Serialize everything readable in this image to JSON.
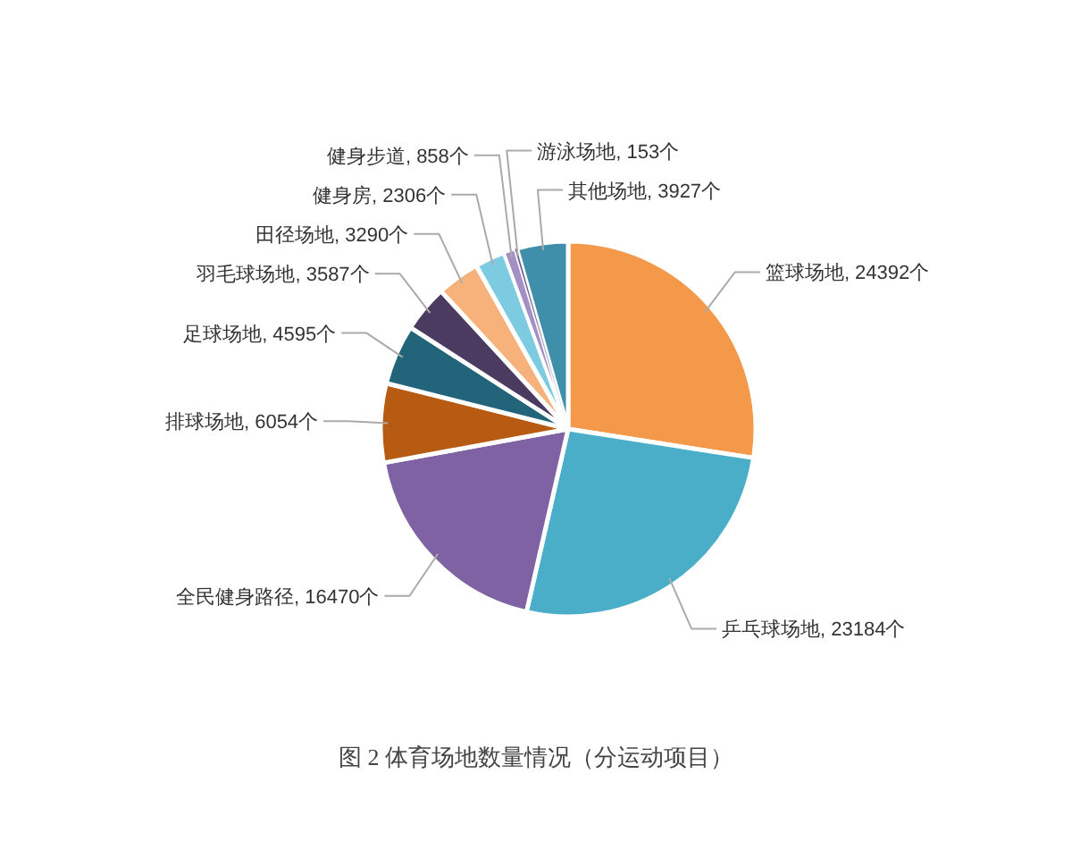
{
  "chart_data": {
    "type": "pie",
    "title": "图 2 体育场地数量情况（分运动项目）",
    "categories": [
      "篮球场地",
      "乒乓球场地",
      "全民健身路径",
      "排球场地",
      "足球场地",
      "羽毛球场地",
      "田径场地",
      "健身房",
      "健身步道",
      "游泳场地",
      "其他场地"
    ],
    "values": [
      24392,
      23184,
      16470,
      6054,
      4595,
      3587,
      3290,
      2306,
      858,
      153,
      3927
    ],
    "colors": [
      "#f4994a",
      "#4aaec8",
      "#7e62a3",
      "#b75a12",
      "#22657a",
      "#4b3b61",
      "#f6b27a",
      "#7ccbe0",
      "#a48fc4",
      "#5a4a80",
      "#3f8fab"
    ],
    "value_labels": [
      "24392个",
      "23184个",
      "16470个",
      "6054个",
      "4595个",
      "3587个",
      "3290个",
      "2306个",
      "858个",
      "153个",
      "3927个"
    ]
  }
}
